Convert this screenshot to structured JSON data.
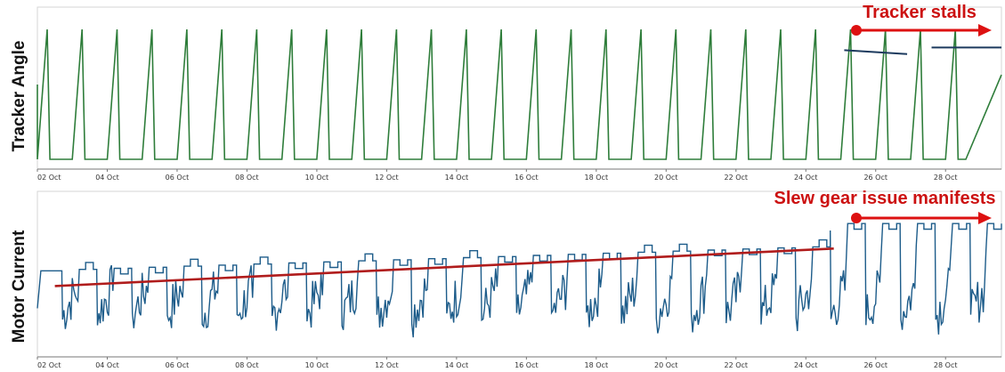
{
  "chart_data": [
    {
      "type": "line",
      "ylabel": "Tracker Angle",
      "x_unit": "day of October",
      "x_range": [
        2,
        29.6
      ],
      "y_range": [
        -1.15,
        1.15
      ],
      "x_ticks": [
        {
          "x": 2,
          "label": "02 Oct"
        },
        {
          "x": 4,
          "label": "04 Oct"
        },
        {
          "x": 6,
          "label": "06 Oct"
        },
        {
          "x": 8,
          "label": "08 Oct"
        },
        {
          "x": 10,
          "label": "10 Oct"
        },
        {
          "x": 12,
          "label": "12 Oct"
        },
        {
          "x": 14,
          "label": "14 Oct"
        },
        {
          "x": 16,
          "label": "16 Oct"
        },
        {
          "x": 18,
          "label": "18 Oct"
        },
        {
          "x": 20,
          "label": "20 Oct"
        },
        {
          "x": 22,
          "label": "22 Oct"
        },
        {
          "x": 24,
          "label": "24 Oct"
        },
        {
          "x": 26,
          "label": "26 Oct"
        },
        {
          "x": 28,
          "label": "28 Oct"
        }
      ],
      "series": [
        {
          "color": "#2e7d3a",
          "pattern": "daily ramp from stow to max angle, steep return, flat night stow",
          "day_start": 2.0,
          "days": 27,
          "day_len": 1.0,
          "ramp_up_fraction": 0.28,
          "drop_fraction": 0.08,
          "night_fraction": 0.22,
          "y_max": 1.0,
          "y_min": -1.0
        },
        {
          "color": "#1c3a5e",
          "segments": [
            {
              "x": [
                25.1,
                26.9
              ],
              "y": [
                0.68,
                0.62
              ]
            },
            {
              "x": [
                27.6,
                29.6
              ],
              "y": [
                0.72,
                0.72
              ]
            }
          ]
        }
      ],
      "annotations": [
        {
          "text": "Tracker stalls",
          "arrow_from": 25.05,
          "arrow_to": 29.5,
          "y": 0.95,
          "color": "#dd1111"
        }
      ]
    },
    {
      "type": "line",
      "ylabel": "Motor Current",
      "x_unit": "day of October",
      "x_range": [
        2,
        29.6
      ],
      "y_range": [
        0,
        1
      ],
      "x_ticks": [
        {
          "x": 2,
          "label": "02 Oct"
        },
        {
          "x": 4,
          "label": "04 Oct"
        },
        {
          "x": 6,
          "label": "06 Oct"
        },
        {
          "x": 8,
          "label": "08 Oct"
        },
        {
          "x": 10,
          "label": "10 Oct"
        },
        {
          "x": 12,
          "label": "12 Oct"
        },
        {
          "x": 14,
          "label": "14 Oct"
        },
        {
          "x": 16,
          "label": "16 Oct"
        },
        {
          "x": 18,
          "label": "18 Oct"
        },
        {
          "x": 20,
          "label": "20 Oct"
        },
        {
          "x": 22,
          "label": "22 Oct"
        },
        {
          "x": 24,
          "label": "24 Oct"
        },
        {
          "x": 26,
          "label": "26 Oct"
        },
        {
          "x": 28,
          "label": "28 Oct"
        }
      ],
      "series": [
        {
          "color": "#1d5c8a",
          "pattern": "noisy daily cycles, plateau rising slowly, jumps to near max after 25 Oct",
          "plateau_start": 0.63,
          "plateau_end": 0.8,
          "plateau_after": 0.96,
          "low_value": 0.12,
          "change_day": 25.0
        },
        {
          "color": "#b01c1c",
          "trend_line": {
            "x": [
              2.5,
              24.8
            ],
            "y": [
              0.51,
              0.78
            ]
          }
        }
      ],
      "annotations": [
        {
          "text": "Slew gear issue manifests",
          "arrow_from": 25.05,
          "arrow_to": 29.5,
          "y": 1.0,
          "color": "#dd1111"
        }
      ]
    }
  ]
}
